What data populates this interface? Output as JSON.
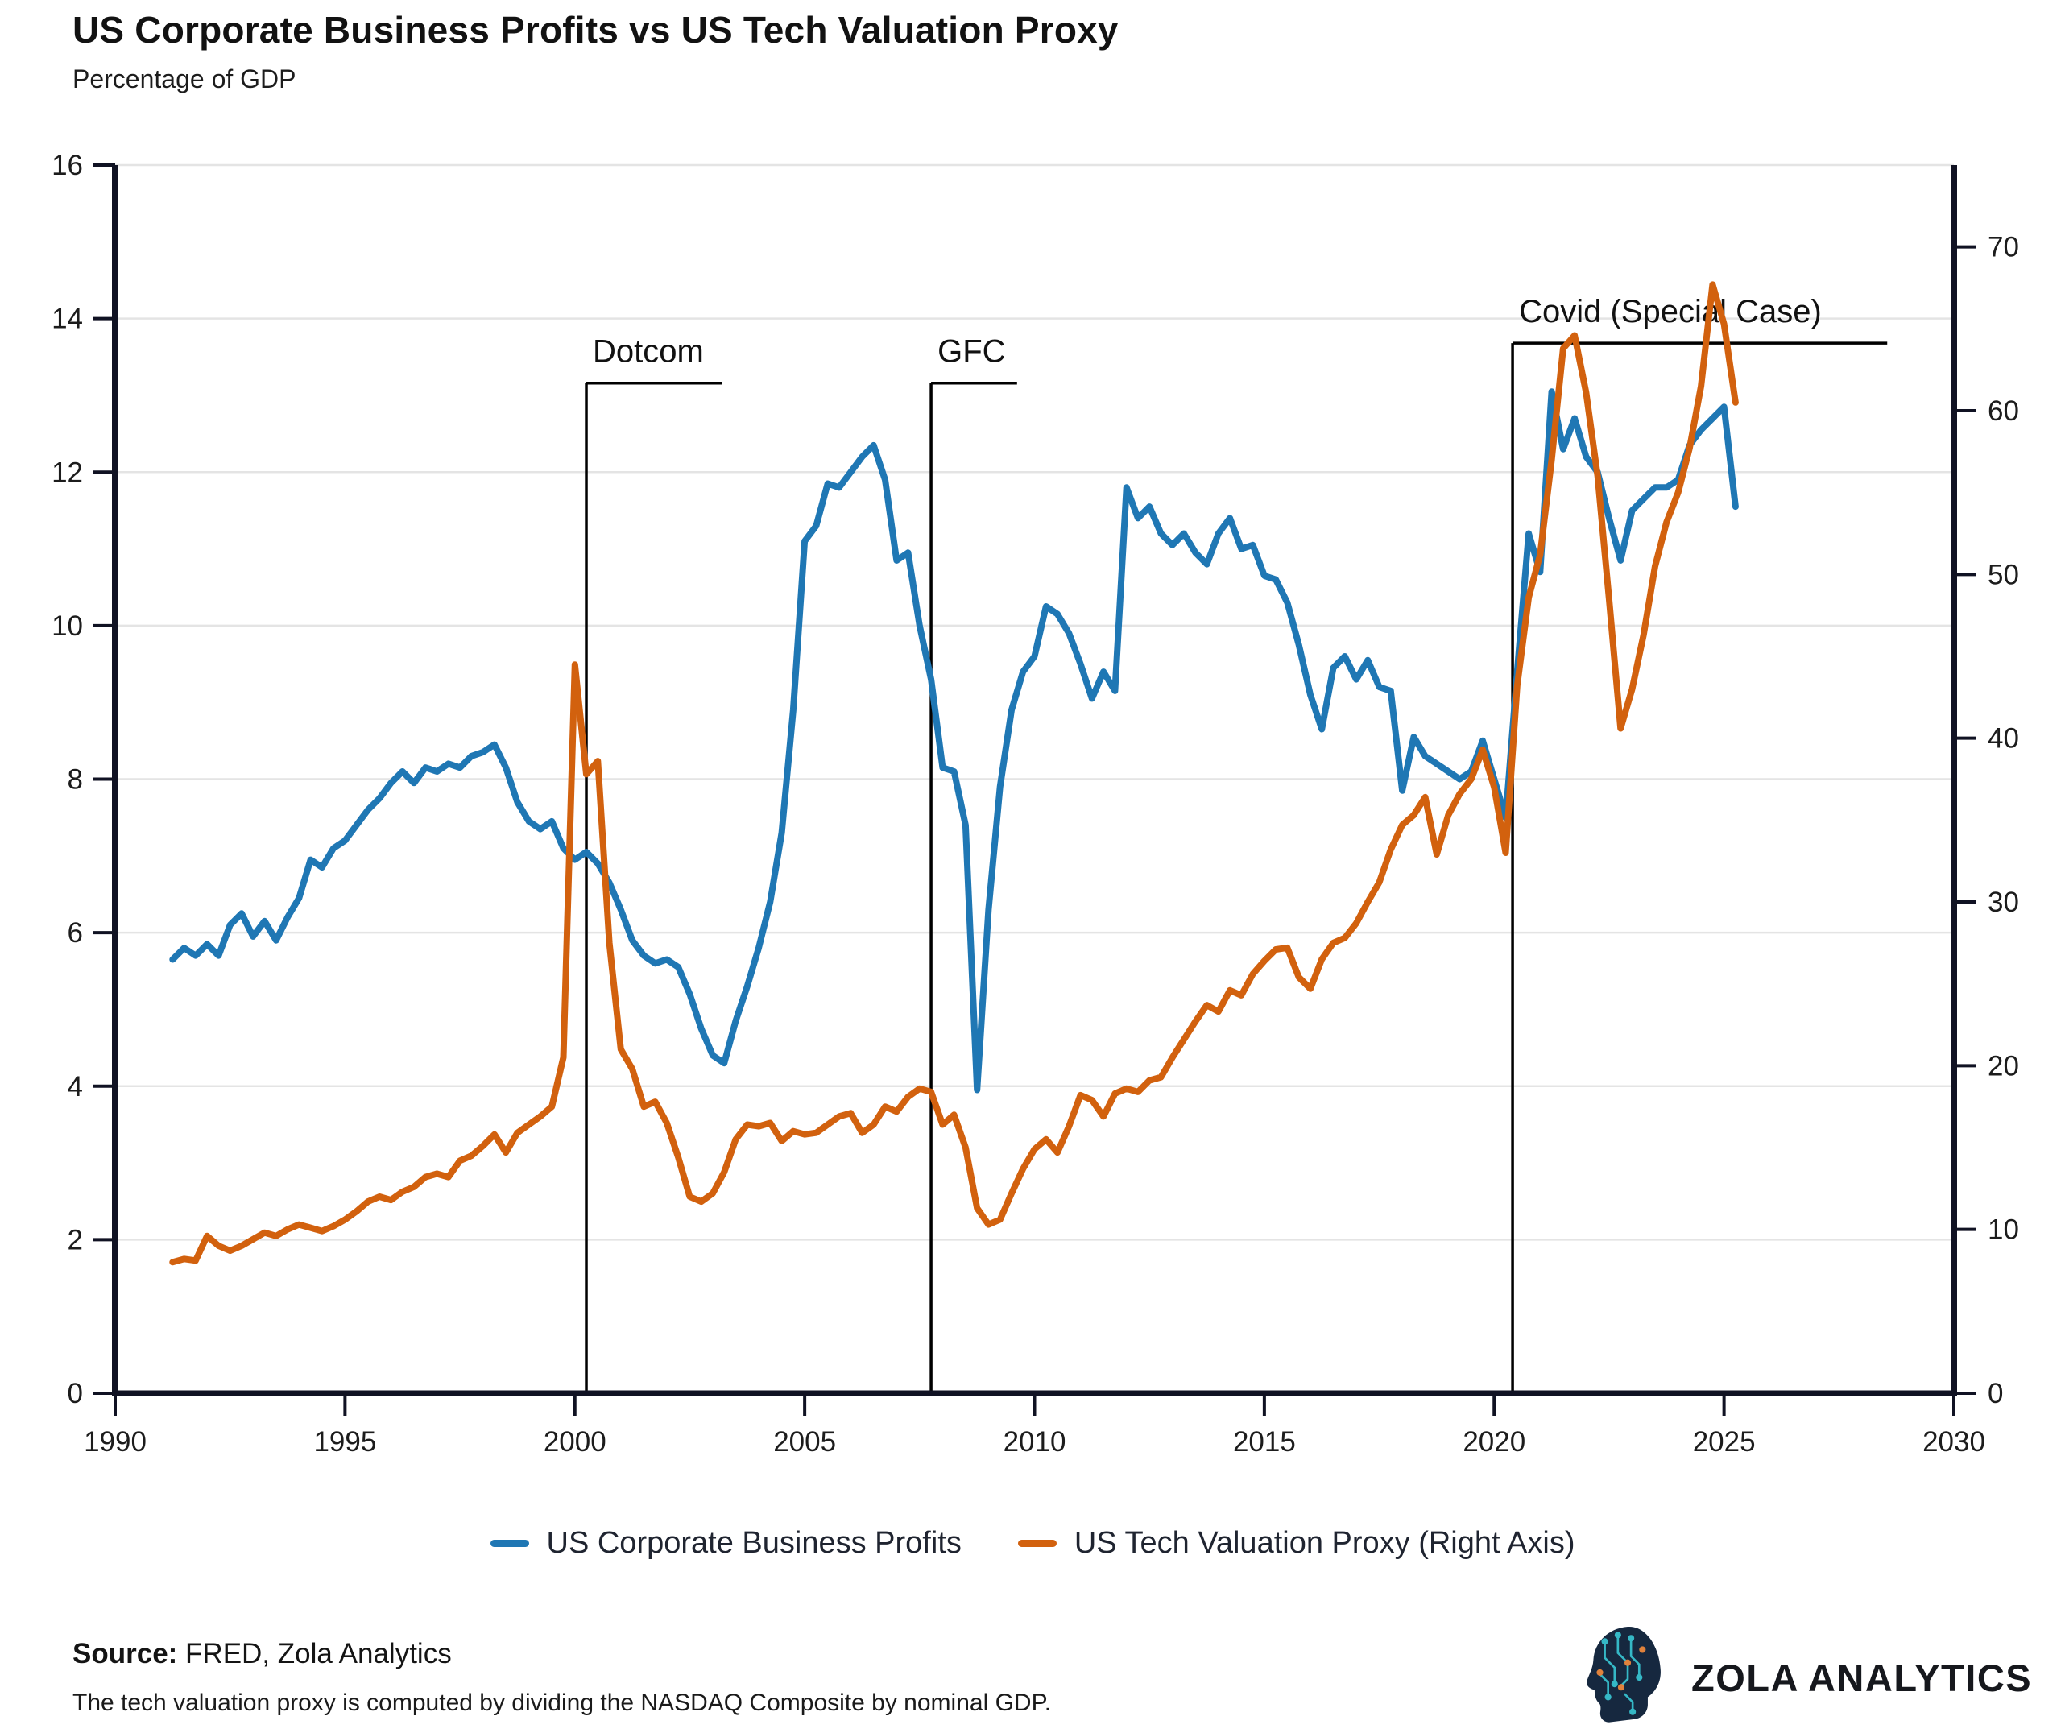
{
  "chart_data": {
    "type": "line",
    "title": "US Corporate Business Profits vs US Tech Valuation Proxy",
    "subtitle": "Percentage of GDP",
    "x_axis": {
      "range": [
        1990,
        2030
      ],
      "ticks": [
        1990,
        1995,
        2000,
        2005,
        2010,
        2015,
        2020,
        2025,
        2030
      ]
    },
    "y_left": {
      "range": [
        0,
        16
      ],
      "ticks": [
        0,
        2,
        4,
        6,
        8,
        10,
        12,
        14,
        16
      ]
    },
    "y_right": {
      "range": [
        0,
        75
      ],
      "ticks": [
        0,
        10,
        20,
        30,
        40,
        50,
        60,
        70
      ]
    },
    "grid": "horizontal",
    "legend_position": "bottom-center",
    "series": [
      {
        "name": "US Corporate Business Profits",
        "axis": "left",
        "color": "#1f77b4",
        "x_start": 1991.25,
        "x_step": 0.25,
        "values": [
          5.65,
          5.8,
          5.7,
          5.85,
          5.7,
          6.1,
          6.25,
          5.95,
          6.15,
          5.9,
          6.2,
          6.45,
          6.95,
          6.85,
          7.1,
          7.2,
          7.4,
          7.6,
          7.75,
          7.95,
          8.1,
          7.95,
          8.15,
          8.1,
          8.2,
          8.15,
          8.3,
          8.35,
          8.45,
          8.15,
          7.7,
          7.45,
          7.35,
          7.45,
          7.1,
          6.95,
          7.05,
          6.9,
          6.65,
          6.3,
          5.9,
          5.7,
          5.6,
          5.65,
          5.55,
          5.2,
          4.75,
          4.4,
          4.3,
          4.85,
          5.3,
          5.8,
          6.4,
          7.3,
          8.9,
          11.1,
          11.3,
          11.85,
          11.8,
          12.0,
          12.2,
          12.35,
          11.9,
          10.85,
          10.95,
          10.0,
          9.3,
          8.15,
          8.1,
          7.4,
          3.95,
          6.3,
          7.9,
          8.9,
          9.4,
          9.6,
          10.25,
          10.15,
          9.9,
          9.5,
          9.05,
          9.4,
          9.15,
          11.8,
          11.4,
          11.55,
          11.2,
          11.05,
          11.2,
          10.95,
          10.8,
          11.2,
          11.4,
          11.0,
          11.05,
          10.65,
          10.6,
          10.3,
          9.75,
          9.1,
          8.65,
          9.45,
          9.6,
          9.3,
          9.55,
          9.2,
          9.15,
          7.85,
          8.55,
          8.3,
          8.2,
          8.1,
          8.0,
          8.1,
          8.5,
          8.0,
          7.5,
          9.4,
          11.2,
          10.7,
          13.05,
          12.3,
          12.7,
          12.2,
          12.0,
          11.4,
          10.85,
          11.5,
          11.65,
          11.8,
          11.8,
          11.9,
          12.35,
          12.55,
          12.7,
          12.85,
          11.55
        ]
      },
      {
        "name": "US Tech Valuation Proxy (Right Axis)",
        "axis": "right",
        "color": "#d2610e",
        "x_start": 1991.25,
        "x_step": 0.25,
        "values": [
          8.0,
          8.2,
          8.1,
          9.6,
          9.0,
          8.7,
          9.0,
          9.4,
          9.8,
          9.6,
          10.0,
          10.3,
          10.1,
          9.9,
          10.2,
          10.6,
          11.1,
          11.7,
          12.0,
          11.8,
          12.3,
          12.6,
          13.2,
          13.4,
          13.2,
          14.2,
          14.5,
          15.1,
          15.8,
          14.7,
          15.9,
          16.4,
          16.9,
          17.5,
          20.5,
          44.5,
          37.8,
          38.6,
          27.5,
          21.0,
          19.8,
          17.5,
          17.8,
          16.5,
          14.4,
          12.0,
          11.7,
          12.2,
          13.5,
          15.5,
          16.4,
          16.3,
          16.5,
          15.4,
          16.0,
          15.8,
          15.9,
          16.4,
          16.9,
          17.1,
          15.9,
          16.4,
          17.5,
          17.2,
          18.1,
          18.6,
          18.4,
          16.4,
          17.0,
          15.0,
          11.3,
          10.3,
          10.6,
          12.2,
          13.7,
          14.9,
          15.5,
          14.7,
          16.3,
          18.2,
          17.9,
          16.9,
          18.3,
          18.6,
          18.4,
          19.1,
          19.3,
          20.5,
          21.6,
          22.7,
          23.7,
          23.3,
          24.6,
          24.3,
          25.6,
          26.4,
          27.1,
          27.2,
          25.4,
          24.7,
          26.5,
          27.5,
          27.8,
          28.7,
          30.0,
          31.2,
          33.2,
          34.7,
          35.3,
          36.4,
          32.9,
          35.3,
          36.6,
          37.5,
          39.3,
          37.0,
          33.0,
          43.2,
          48.6,
          51.2,
          57.0,
          63.8,
          64.6,
          61.1,
          56.0,
          48.5,
          40.6,
          43.0,
          46.3,
          50.5,
          53.2,
          55.0,
          57.7,
          61.5,
          67.7,
          65.3,
          60.5
        ]
      }
    ],
    "annotations": [
      {
        "label": "Dotcom",
        "x": 2000.25,
        "end_x": 2003.2,
        "top": 13.16
      },
      {
        "label": "GFC",
        "x": 2007.75,
        "end_x": 2009.62,
        "top": 13.16
      },
      {
        "label": "Covid (Special Case)",
        "x": 2020.4,
        "end_x": 2028.55,
        "top": 13.68
      }
    ]
  },
  "legend": {
    "items": [
      {
        "label": "US Corporate Business Profits",
        "color": "#1f77b4"
      },
      {
        "label": "US Tech Valuation Proxy (Right Axis)",
        "color": "#d2610e"
      }
    ]
  },
  "footer": {
    "source_label": "Source:",
    "source_text": " FRED, Zola Analytics",
    "note": "The tech valuation proxy is computed by dividing the NASDAQ Composite by nominal GDP.",
    "logo_text": "ZOLA ANALYTICS"
  }
}
